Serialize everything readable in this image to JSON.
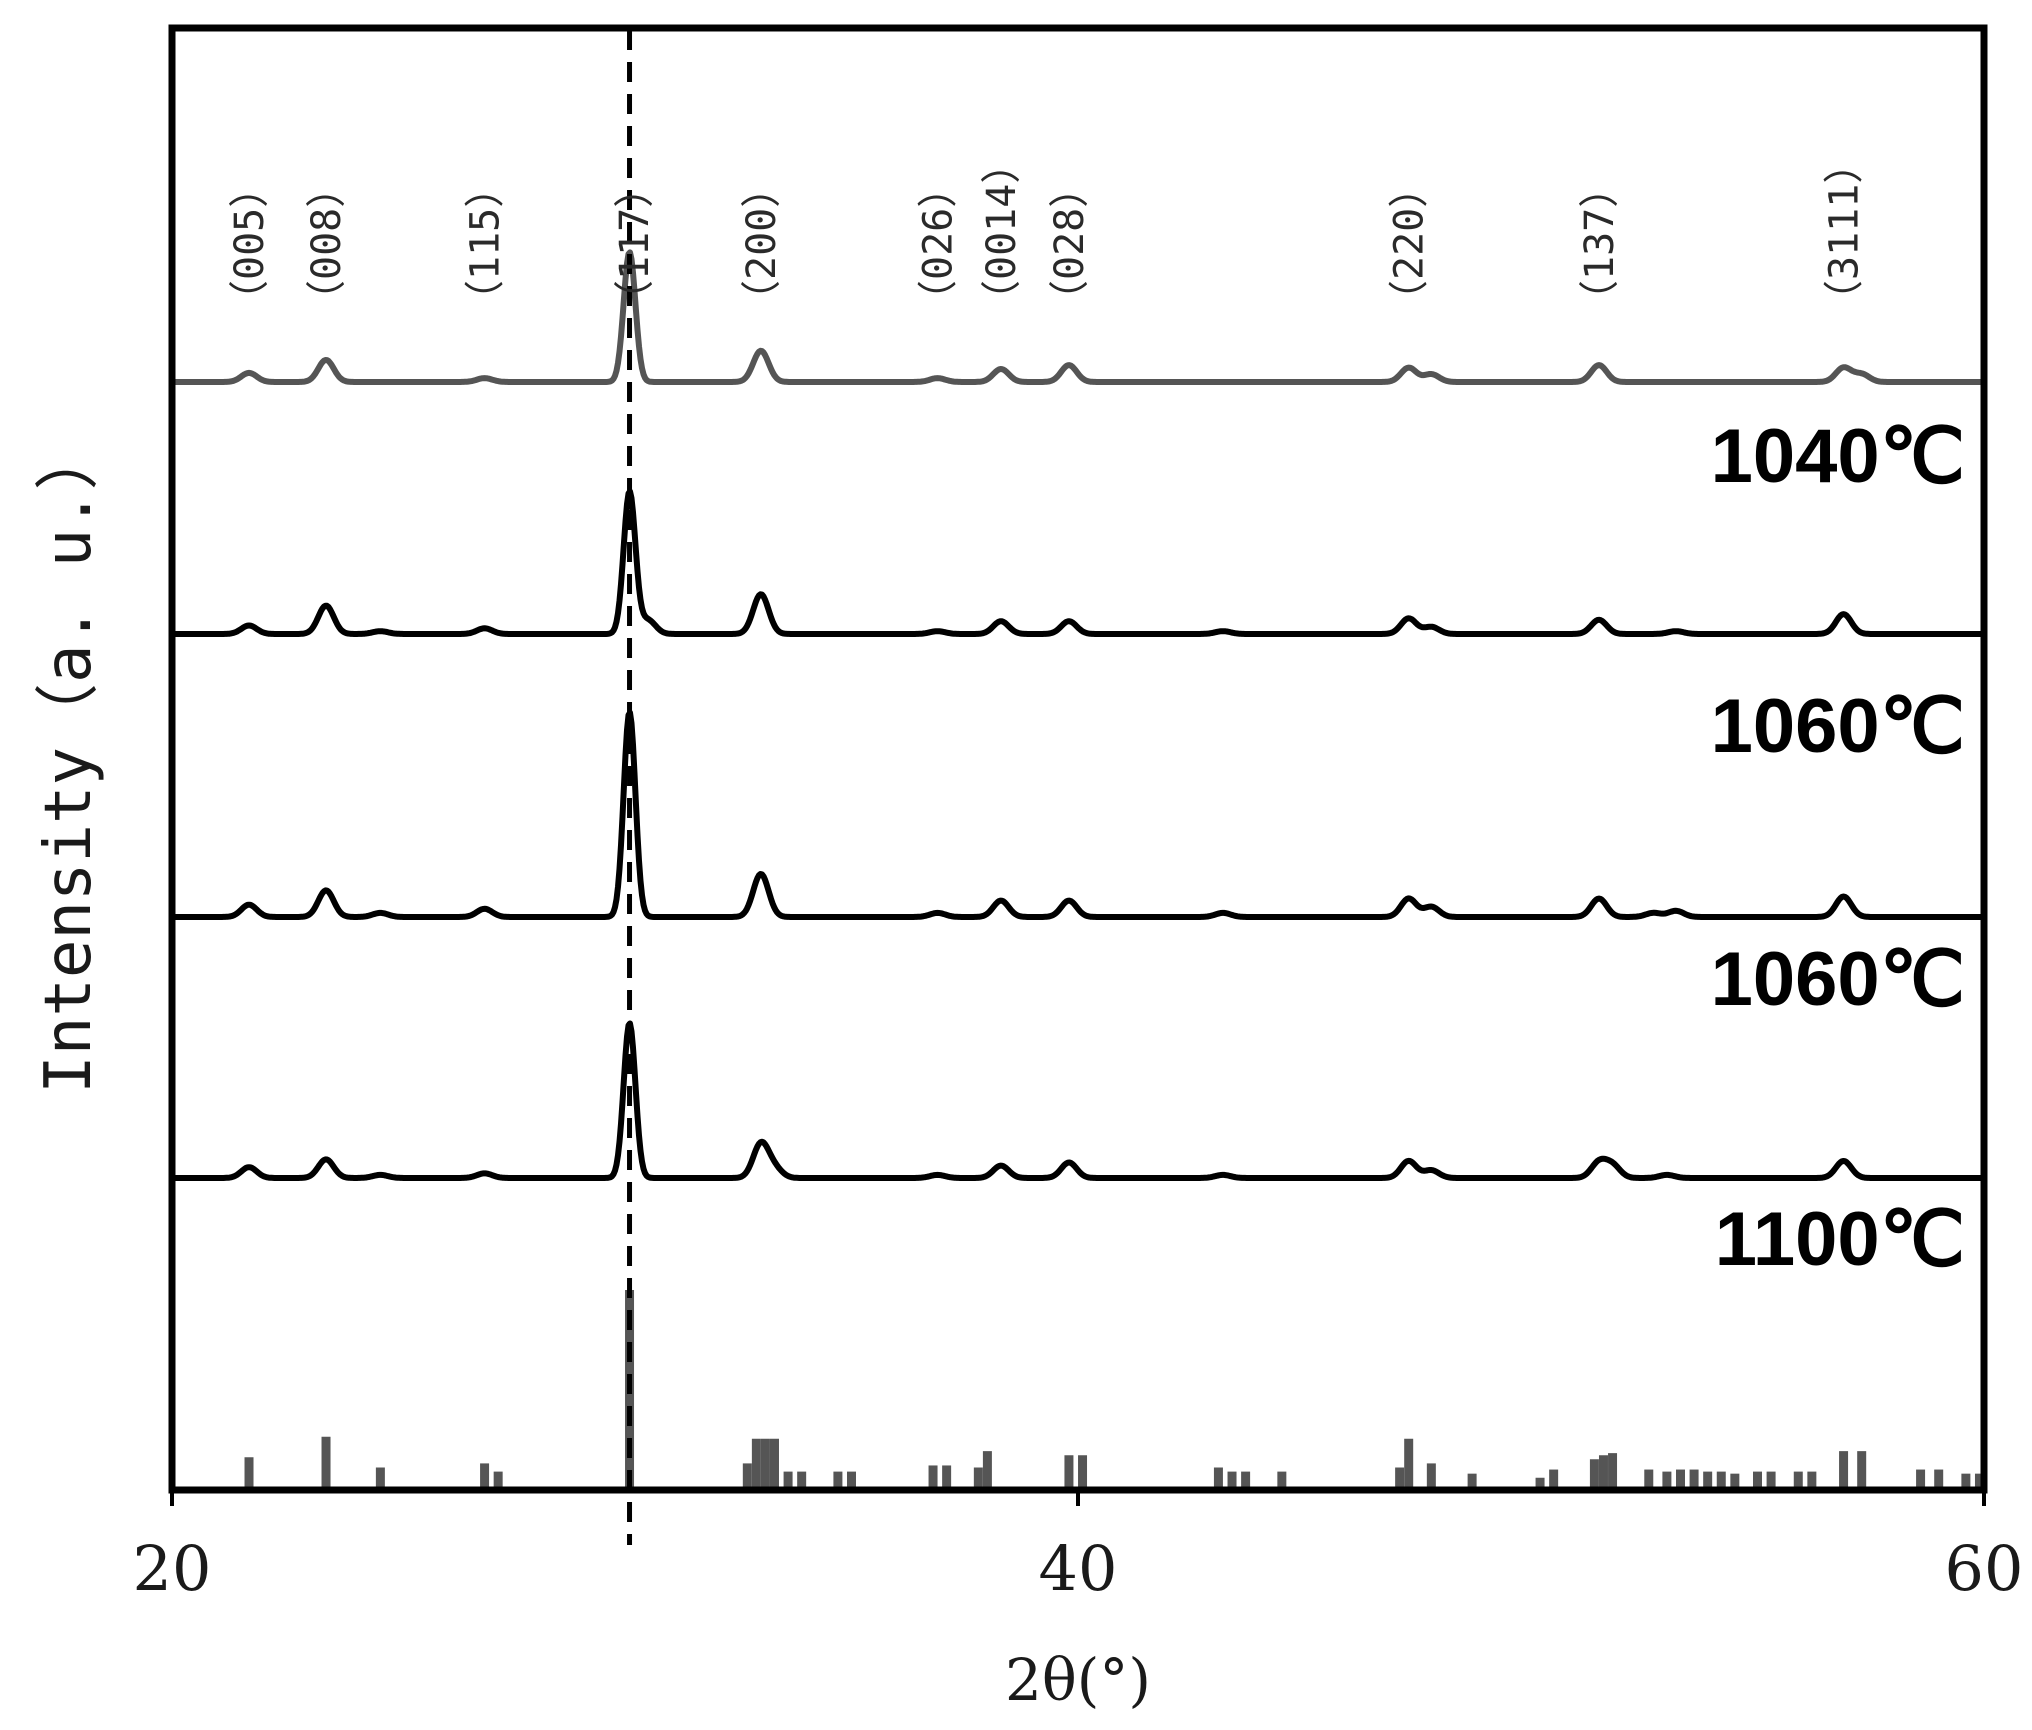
{
  "chart_data": {
    "type": "line",
    "title": "",
    "xlabel": "2θ(°)",
    "ylabel": "Intensity（a. u.）",
    "xlim": [
      20,
      60
    ],
    "xticks": [
      {
        "value": 20,
        "label": "20"
      },
      {
        "value": 40,
        "label": "40"
      },
      {
        "value": 60,
        "label": "60"
      }
    ],
    "grid": false,
    "reference_line": {
      "x": 30.1,
      "style": "dashed"
    },
    "hkl_labels": [
      {
        "x": 21.7,
        "label": "（005）"
      },
      {
        "x": 23.4,
        "label": "（008）"
      },
      {
        "x": 26.9,
        "label": "（115）"
      },
      {
        "x": 30.2,
        "label": "（117）"
      },
      {
        "x": 33.0,
        "label": "（200）"
      },
      {
        "x": 36.9,
        "label": "（026）"
      },
      {
        "x": 38.3,
        "label": "（0014）"
      },
      {
        "x": 39.8,
        "label": "（028）"
      },
      {
        "x": 47.3,
        "label": "（220）"
      },
      {
        "x": 51.5,
        "label": "（137）"
      },
      {
        "x": 56.9,
        "label": "（3111）"
      }
    ],
    "series": [
      {
        "name": "1040℃",
        "color": "#555555",
        "peaks": [
          [
            21.7,
            0.07
          ],
          [
            23.4,
            0.17
          ],
          [
            26.9,
            0.03
          ],
          [
            30.1,
            1.0
          ],
          [
            33.0,
            0.24
          ],
          [
            36.9,
            0.03
          ],
          [
            38.3,
            0.1
          ],
          [
            39.8,
            0.13
          ],
          [
            47.3,
            0.11
          ],
          [
            47.8,
            0.06
          ],
          [
            51.5,
            0.13
          ],
          [
            56.9,
            0.11
          ],
          [
            57.3,
            0.06
          ]
        ]
      },
      {
        "name": "1060℃",
        "color": "#000000",
        "peaks": [
          [
            21.7,
            0.06
          ],
          [
            23.4,
            0.2
          ],
          [
            24.6,
            0.02
          ],
          [
            26.9,
            0.04
          ],
          [
            30.1,
            1.0
          ],
          [
            30.5,
            0.1
          ],
          [
            33.0,
            0.28
          ],
          [
            36.9,
            0.02
          ],
          [
            38.3,
            0.09
          ],
          [
            39.8,
            0.09
          ],
          [
            43.2,
            0.02
          ],
          [
            47.3,
            0.11
          ],
          [
            47.8,
            0.05
          ],
          [
            51.5,
            0.1
          ],
          [
            53.2,
            0.02
          ],
          [
            56.9,
            0.14
          ]
        ]
      },
      {
        "name": "1060℃",
        "color": "#000000",
        "peaks": [
          [
            21.7,
            0.06
          ],
          [
            23.4,
            0.13
          ],
          [
            24.6,
            0.02
          ],
          [
            26.9,
            0.04
          ],
          [
            30.1,
            1.0
          ],
          [
            33.0,
            0.21
          ],
          [
            36.9,
            0.02
          ],
          [
            38.3,
            0.08
          ],
          [
            39.8,
            0.08
          ],
          [
            43.2,
            0.02
          ],
          [
            47.3,
            0.09
          ],
          [
            47.8,
            0.05
          ],
          [
            51.5,
            0.09
          ],
          [
            52.7,
            0.02
          ],
          [
            53.2,
            0.03
          ],
          [
            56.9,
            0.1
          ]
        ]
      },
      {
        "name": "1100℃",
        "color": "#000000",
        "peaks": [
          [
            21.7,
            0.07
          ],
          [
            23.4,
            0.12
          ],
          [
            24.6,
            0.02
          ],
          [
            26.9,
            0.03
          ],
          [
            30.1,
            1.0
          ],
          [
            33.0,
            0.22
          ],
          [
            33.3,
            0.06
          ],
          [
            36.9,
            0.02
          ],
          [
            38.3,
            0.08
          ],
          [
            39.8,
            0.1
          ],
          [
            43.2,
            0.02
          ],
          [
            47.3,
            0.11
          ],
          [
            47.8,
            0.05
          ],
          [
            51.5,
            0.1
          ],
          [
            51.8,
            0.08
          ],
          [
            53.0,
            0.02
          ],
          [
            56.9,
            0.11
          ]
        ]
      }
    ],
    "reference_pattern": {
      "color": "#555555",
      "sticks": [
        [
          21.7,
          0.15
        ],
        [
          23.4,
          0.25
        ],
        [
          24.6,
          0.1
        ],
        [
          26.9,
          0.12
        ],
        [
          27.2,
          0.08
        ],
        [
          30.1,
          1.0
        ],
        [
          32.7,
          0.12
        ],
        [
          32.9,
          0.24
        ],
        [
          33.1,
          0.24
        ],
        [
          33.3,
          0.24
        ],
        [
          33.6,
          0.08
        ],
        [
          33.9,
          0.08
        ],
        [
          34.7,
          0.08
        ],
        [
          35.0,
          0.08
        ],
        [
          36.8,
          0.11
        ],
        [
          37.1,
          0.11
        ],
        [
          37.8,
          0.1
        ],
        [
          38.0,
          0.18
        ],
        [
          39.8,
          0.16
        ],
        [
          40.1,
          0.16
        ],
        [
          43.1,
          0.1
        ],
        [
          43.4,
          0.08
        ],
        [
          43.7,
          0.08
        ],
        [
          44.5,
          0.08
        ],
        [
          47.1,
          0.1
        ],
        [
          47.3,
          0.24
        ],
        [
          47.8,
          0.12
        ],
        [
          48.7,
          0.07
        ],
        [
          50.2,
          0.05
        ],
        [
          50.5,
          0.09
        ],
        [
          51.4,
          0.14
        ],
        [
          51.6,
          0.16
        ],
        [
          51.8,
          0.17
        ],
        [
          52.6,
          0.09
        ],
        [
          53.0,
          0.08
        ],
        [
          53.3,
          0.09
        ],
        [
          53.6,
          0.09
        ],
        [
          53.9,
          0.08
        ],
        [
          54.2,
          0.08
        ],
        [
          54.5,
          0.07
        ],
        [
          55.0,
          0.08
        ],
        [
          55.3,
          0.08
        ],
        [
          55.9,
          0.08
        ],
        [
          56.2,
          0.08
        ],
        [
          56.9,
          0.18
        ],
        [
          57.3,
          0.18
        ],
        [
          58.6,
          0.09
        ],
        [
          59.0,
          0.09
        ],
        [
          59.6,
          0.07
        ],
        [
          59.9,
          0.07
        ]
      ]
    }
  }
}
